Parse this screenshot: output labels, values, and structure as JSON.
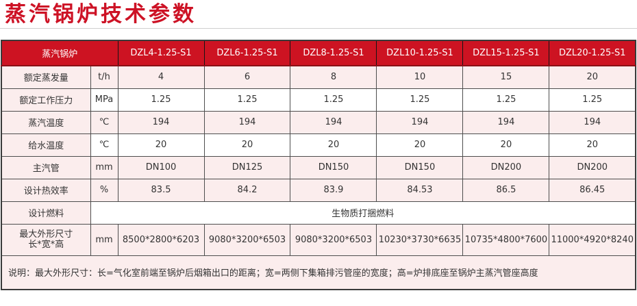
{
  "page": {
    "title": "蒸汽锅炉技术参数"
  },
  "colors": {
    "title_red": "#cd1225",
    "header_red": "#cd1322",
    "header_text": "#ffffff",
    "row_pink": "#fbeded",
    "row_white": "#ffffff",
    "border_dark": "#3a3a3a"
  },
  "table": {
    "header": {
      "corner_label": "蒸汽锅炉",
      "models": [
        "DZL4-1.25-S1",
        "DZL6-1.25-S1",
        "DZL8-1.25-S1",
        "DZL10-1.25-S1",
        "DZL15-1.25-S1",
        "DZL20-1.25-S1"
      ]
    },
    "rows": [
      {
        "label": "额定蒸发量",
        "unit": "t/h",
        "values": [
          "4",
          "6",
          "8",
          "10",
          "15",
          "20"
        ],
        "shade": "pink"
      },
      {
        "label": "额定工作压力",
        "unit": "MPa",
        "values": [
          "1.25",
          "1.25",
          "1.25",
          "1.25",
          "1.25",
          "1.25"
        ],
        "shade": "white"
      },
      {
        "label": "蒸汽温度",
        "unit": "℃",
        "values": [
          "194",
          "194",
          "194",
          "194",
          "194",
          "194"
        ],
        "shade": "pink"
      },
      {
        "label": "给水温度",
        "unit": "℃",
        "values": [
          "20",
          "20",
          "20",
          "20",
          "20",
          "20"
        ],
        "shade": "white"
      },
      {
        "label": "主汽管",
        "unit": "mm",
        "values": [
          "DN100",
          "DN125",
          "DN150",
          "DN150",
          "DN200",
          "DN200"
        ],
        "shade": "pink"
      },
      {
        "label": "设计热效率",
        "unit": "%",
        "values": [
          "83.5",
          "84.2",
          "83.9",
          "84.53",
          "86.5",
          "86.45"
        ],
        "shade": "pink"
      },
      {
        "label": "设计燃料",
        "merged_value": "生物质打捆燃料",
        "shade": "white"
      },
      {
        "label": "最大外形尺寸",
        "label_line2": "长*宽*高",
        "unit": "mm",
        "values": [
          "8500*2800*6203",
          "9080*3200*6503",
          "9080*3200*6503",
          "10230*3730*6635",
          "10735*4800*7600",
          "11000*4920*8240"
        ],
        "shade": "pink",
        "tall": true
      }
    ],
    "note": "说明：最大外形尺寸：长=气化室前端至锅炉后烟箱出口的距离；宽=两侧下集箱排污管座的宽度；高=炉排底座至锅炉主蒸汽管座高度"
  }
}
